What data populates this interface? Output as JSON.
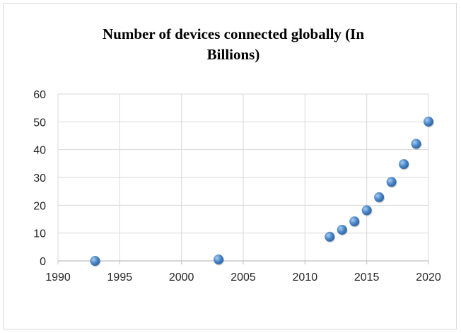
{
  "chart_data": {
    "type": "scatter",
    "title_lines": [
      "Number  of devices connected globally  (In",
      "Billions)"
    ],
    "xlabel": "",
    "ylabel": "",
    "xlim": [
      1990,
      2020
    ],
    "ylim": [
      0,
      60
    ],
    "x_ticks": [
      1990,
      1995,
      2000,
      2005,
      2010,
      2015,
      2020
    ],
    "y_ticks": [
      0,
      10,
      20,
      30,
      40,
      50,
      60
    ],
    "grid": true,
    "legend": "none",
    "colors": {
      "marker": "#4a86c8",
      "grid": "#d9d9d9",
      "axis": "#bfbfbf"
    },
    "points": [
      {
        "x": 1993,
        "y": 0
      },
      {
        "x": 2003,
        "y": 0.5
      },
      {
        "x": 2012,
        "y": 8.7
      },
      {
        "x": 2013,
        "y": 11.2
      },
      {
        "x": 2014,
        "y": 14.2
      },
      {
        "x": 2015,
        "y": 18.2
      },
      {
        "x": 2016,
        "y": 22.9
      },
      {
        "x": 2017,
        "y": 28.4
      },
      {
        "x": 2018,
        "y": 34.8
      },
      {
        "x": 2019,
        "y": 42.1
      },
      {
        "x": 2020,
        "y": 50.1
      }
    ]
  }
}
